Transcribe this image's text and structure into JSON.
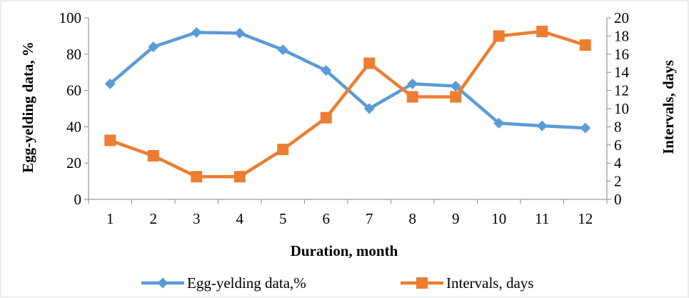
{
  "chart_data": {
    "type": "line",
    "title": "",
    "xlabel": "Duration, month",
    "ylabel": "Egg-yelding data, %",
    "y2label": "Intervals, days",
    "categories": [
      "1",
      "2",
      "3",
      "4",
      "5",
      "6",
      "7",
      "8",
      "9",
      "10",
      "11",
      "12"
    ],
    "ylim": [
      0,
      100
    ],
    "yticks": [
      "0",
      "20",
      "40",
      "60",
      "80",
      "100"
    ],
    "y2lim": [
      0,
      20
    ],
    "y2ticks": [
      "0",
      "2",
      "4",
      "6",
      "8",
      "10",
      "12",
      "14",
      "16",
      "18",
      "20"
    ],
    "grid": false,
    "legend_position": "bottom",
    "series": [
      {
        "name": "Egg-yelding data,%",
        "axis": "left",
        "marker": "diamond",
        "color": "#5b9bd5",
        "values": [
          63.7,
          84,
          92,
          91.6,
          82.4,
          71,
          50,
          63.7,
          62.4,
          42,
          40.5,
          39.3
        ]
      },
      {
        "name": "Intervals, days",
        "axis": "right",
        "marker": "square",
        "color": "#ed7d31",
        "values": [
          6.5,
          4.8,
          2.5,
          2.5,
          5.5,
          9,
          15,
          11.3,
          11.3,
          18,
          18.5,
          17
        ]
      }
    ]
  }
}
